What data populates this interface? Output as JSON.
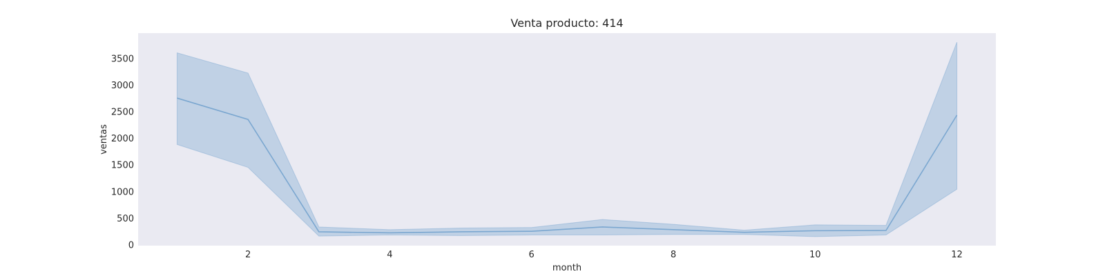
{
  "chart_data": {
    "type": "line",
    "title": "Venta producto: 414",
    "xlabel": "month",
    "ylabel": "ventas",
    "xlim": [
      0.45,
      12.55
    ],
    "ylim": [
      -20,
      3970
    ],
    "xticks": [
      2,
      4,
      6,
      8,
      10,
      12
    ],
    "yticks": [
      0,
      500,
      1000,
      1500,
      2000,
      2500,
      3000,
      3500
    ],
    "grid": false,
    "background": "#eaeaf2",
    "series": [
      {
        "color": "#7ba7d0",
        "x": [
          1,
          2,
          3,
          4,
          5,
          6,
          7,
          8,
          9,
          10,
          11,
          12
        ],
        "values": [
          2750,
          2350,
          240,
          220,
          240,
          250,
          330,
          280,
          230,
          260,
          265,
          2430
        ],
        "ci_lower": [
          1880,
          1450,
          160,
          180,
          170,
          180,
          180,
          190,
          190,
          150,
          180,
          1040
        ],
        "ci_upper": [
          3600,
          3220,
          330,
          280,
          310,
          320,
          470,
          380,
          270,
          370,
          360,
          3800
        ]
      }
    ]
  }
}
